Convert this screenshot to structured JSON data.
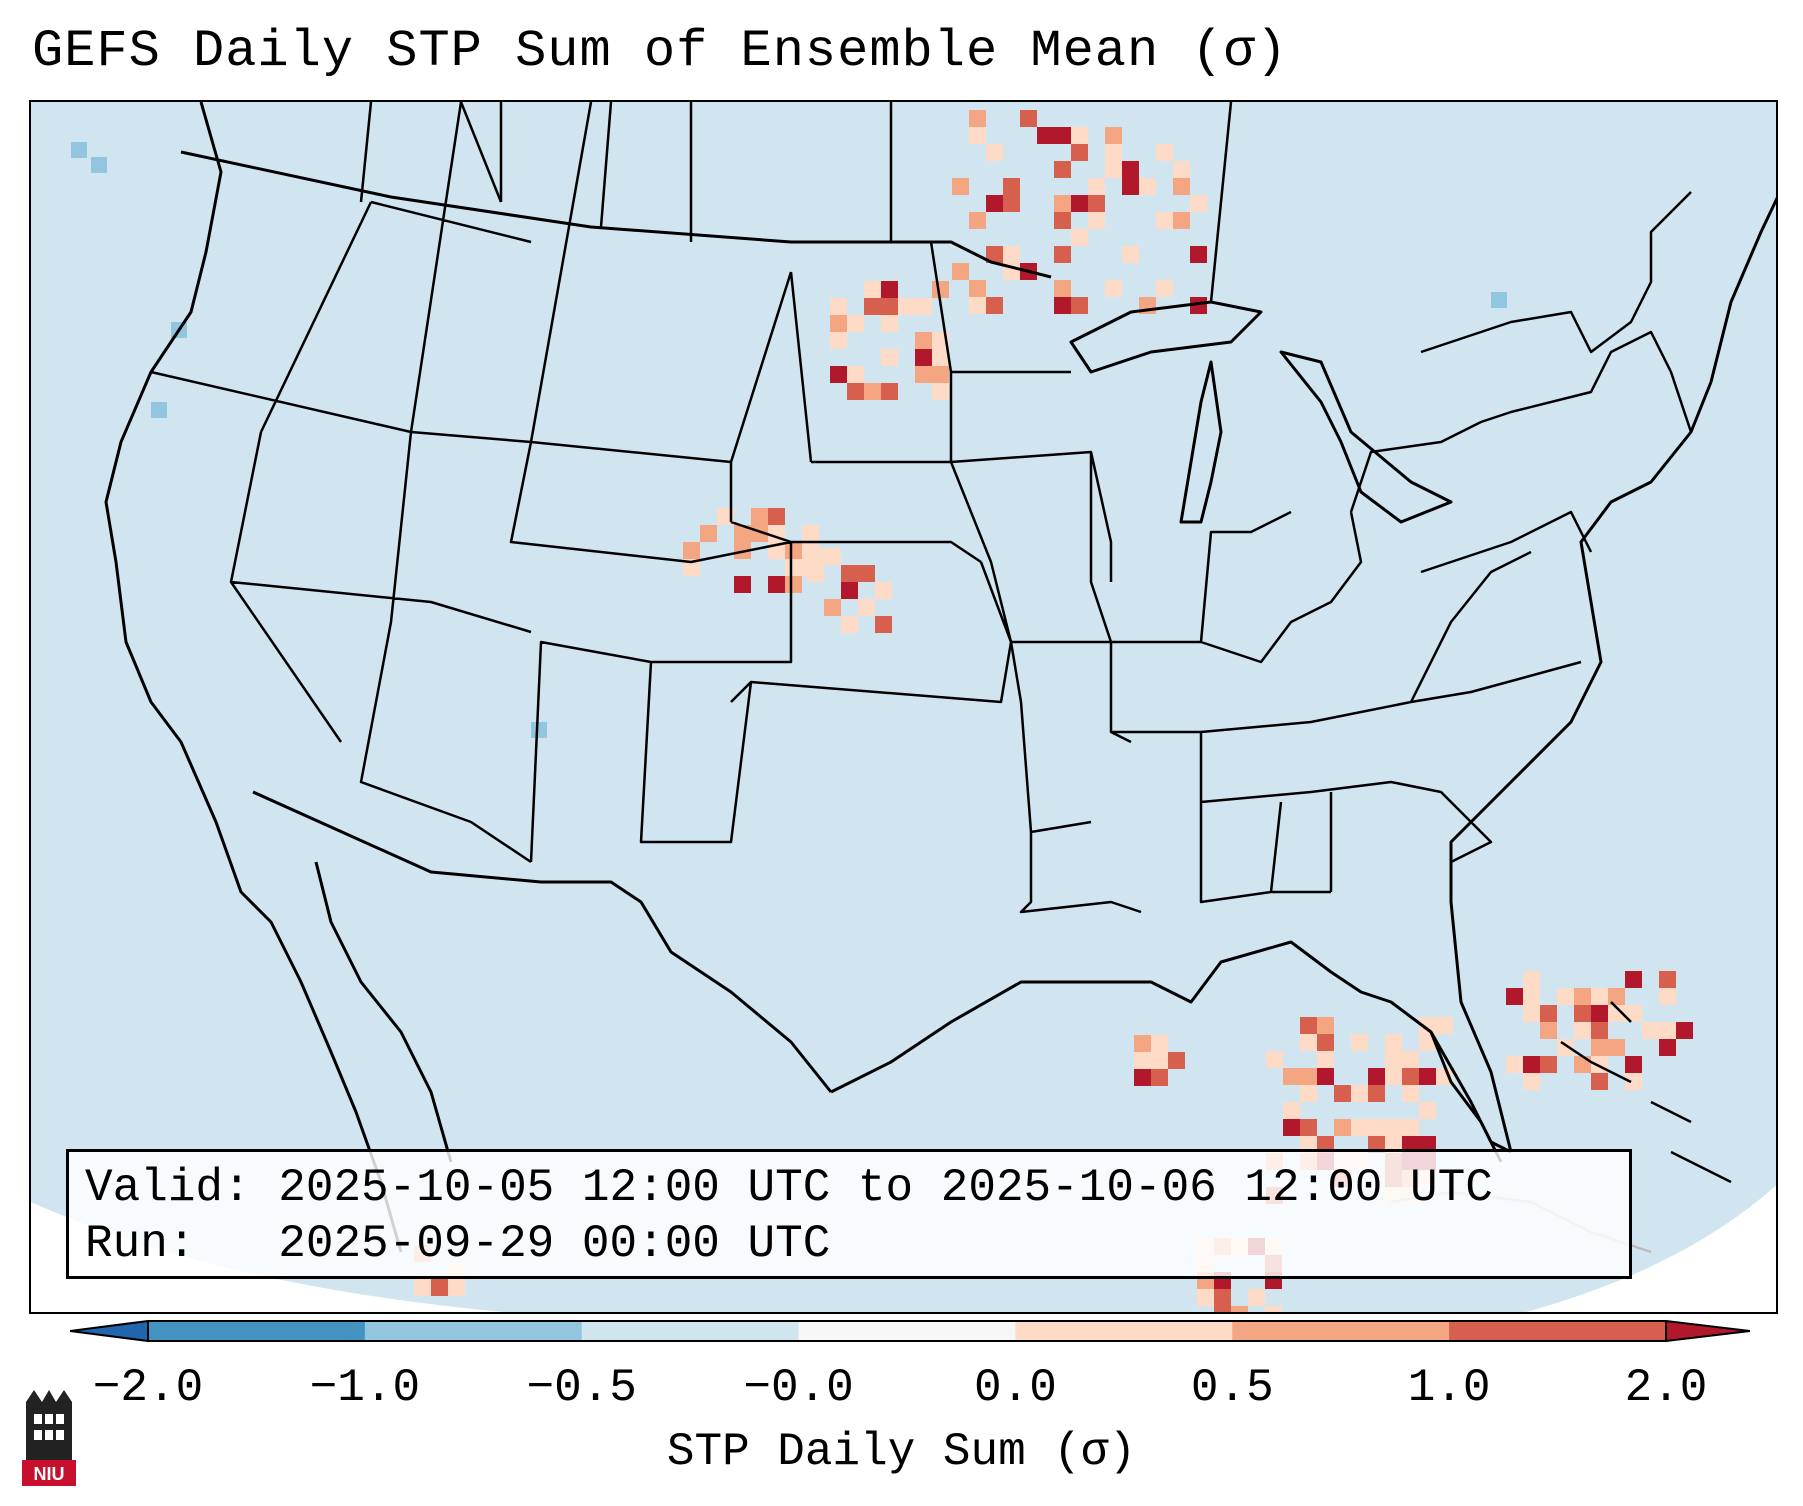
{
  "title": "GEFS Daily STP Sum of Ensemble Mean (σ)",
  "info": {
    "valid_line": "Valid: 2025-10-05 12:00 UTC to 2025-10-06 12:00 UTC",
    "run_line": "Run:   2025-09-29 00:00 UTC"
  },
  "colorbar": {
    "label": "STP Daily Sum (σ)",
    "ticks": [
      "−2.0",
      "−1.0",
      "−0.5",
      "−0.0",
      "0.0",
      "0.5",
      "1.0",
      "2.0"
    ],
    "colors": [
      "#4393c3",
      "#92c5de",
      "#d1e5f0",
      "#f7f7f7",
      "#fddbc7",
      "#f4a582",
      "#d6604d"
    ],
    "extend_low_color": "#2166ac",
    "extend_high_color": "#b2182b"
  },
  "logo": {
    "text": "NIU",
    "name": "Northern Illinois University"
  },
  "map": {
    "background_color": "#d1e5f0",
    "state_line_color": "#000000"
  }
}
